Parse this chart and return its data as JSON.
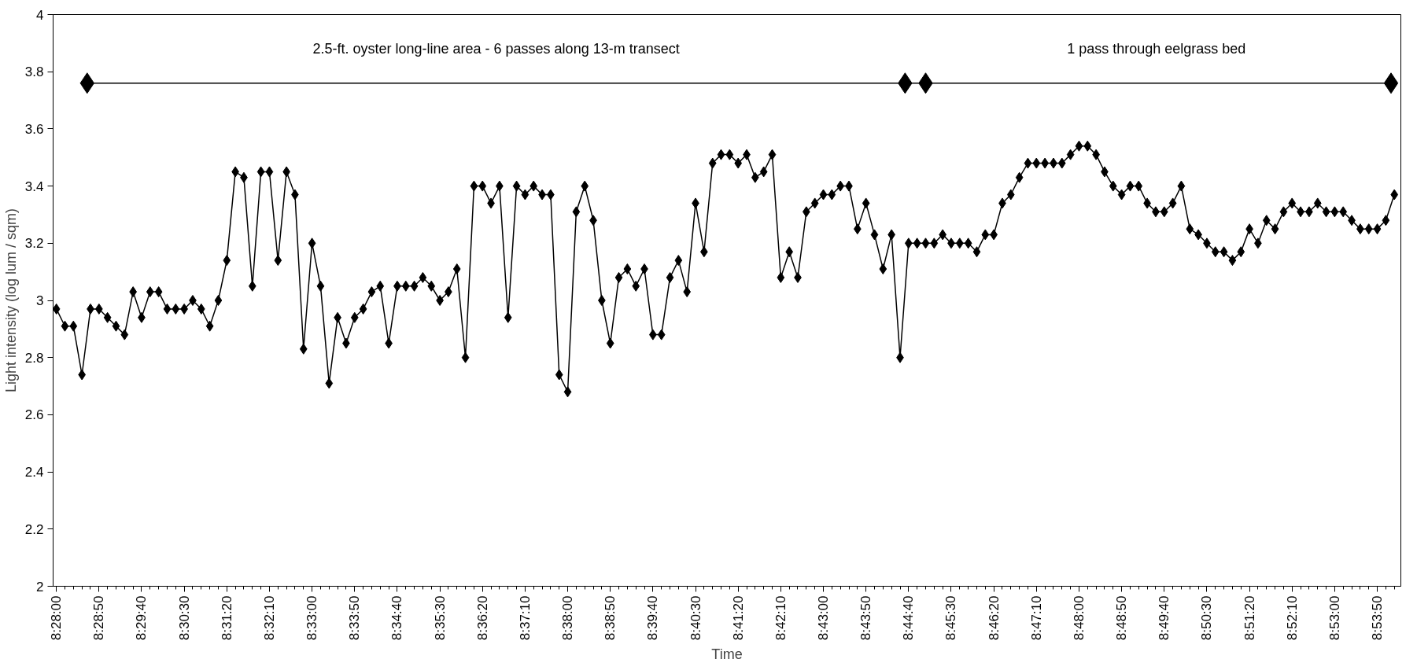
{
  "chart_data": {
    "type": "line",
    "xlabel": "Time",
    "ylabel": "Light intensity (log lum / sqm)",
    "xlim": [
      8.4656,
      8.9049
    ],
    "ylim": [
      2,
      4
    ],
    "yticks": [
      2,
      2.2,
      2.4,
      2.6,
      2.8,
      3,
      3.2,
      3.4,
      3.6,
      3.8,
      4
    ],
    "xticks": [
      {
        "value": 8.46667,
        "label": "8:28:00"
      },
      {
        "value": 8.48056,
        "label": "8:28:50"
      },
      {
        "value": 8.49444,
        "label": "8:29:40"
      },
      {
        "value": 8.50833,
        "label": "8:30:30"
      },
      {
        "value": 8.52222,
        "label": "8:31:20"
      },
      {
        "value": 8.53611,
        "label": "8:32:10"
      },
      {
        "value": 8.55,
        "label": "8:33:00"
      },
      {
        "value": 8.56389,
        "label": "8:33:50"
      },
      {
        "value": 8.57778,
        "label": "8:34:40"
      },
      {
        "value": 8.59167,
        "label": "8:35:30"
      },
      {
        "value": 8.60556,
        "label": "8:36:20"
      },
      {
        "value": 8.61944,
        "label": "8:37:10"
      },
      {
        "value": 8.63333,
        "label": "8:38:00"
      },
      {
        "value": 8.64722,
        "label": "8:38:50"
      },
      {
        "value": 8.66111,
        "label": "8:39:40"
      },
      {
        "value": 8.675,
        "label": "8:40:30"
      },
      {
        "value": 8.68889,
        "label": "8:41:20"
      },
      {
        "value": 8.70278,
        "label": "8:42:10"
      },
      {
        "value": 8.71667,
        "label": "8:43:00"
      },
      {
        "value": 8.73056,
        "label": "8:43:50"
      },
      {
        "value": 8.74444,
        "label": "8:44:40"
      },
      {
        "value": 8.75833,
        "label": "8:45:30"
      },
      {
        "value": 8.77222,
        "label": "8:46:20"
      },
      {
        "value": 8.78611,
        "label": "8:47:10"
      },
      {
        "value": 8.8,
        "label": "8:48:00"
      },
      {
        "value": 8.81389,
        "label": "8:48:50"
      },
      {
        "value": 8.82778,
        "label": "8:49:40"
      },
      {
        "value": 8.84167,
        "label": "8:50:30"
      },
      {
        "value": 8.85556,
        "label": "8:51:20"
      },
      {
        "value": 8.86944,
        "label": "8:52:10"
      },
      {
        "value": 8.88333,
        "label": "8:53:00"
      },
      {
        "value": 8.89722,
        "label": "8:53:50"
      }
    ],
    "grid": false,
    "line_style": "solid",
    "annotations": [
      "2.5-ft. oyster long-line area - 6 passes along 13-m transect",
      "1  pass through eelgrass bed"
    ],
    "series": [
      {
        "color": "#000000",
        "marker": "diamond",
        "x": [
          8.46667,
          8.46944,
          8.47222,
          8.475,
          8.47778,
          8.48056,
          8.48333,
          8.48611,
          8.48889,
          8.49167,
          8.49444,
          8.49722,
          8.5,
          8.50278,
          8.50556,
          8.50833,
          8.51111,
          8.51389,
          8.51667,
          8.51944,
          8.52222,
          8.525,
          8.52778,
          8.53056,
          8.53333,
          8.53611,
          8.53889,
          8.54167,
          8.54444,
          8.54722,
          8.55,
          8.55278,
          8.55556,
          8.55833,
          8.56111,
          8.56389,
          8.56667,
          8.56944,
          8.57222,
          8.575,
          8.57778,
          8.58056,
          8.58333,
          8.58611,
          8.58889,
          8.59167,
          8.59444,
          8.59722,
          8.6,
          8.60278,
          8.60556,
          8.60833,
          8.61111,
          8.61389,
          8.61667,
          8.61944,
          8.62222,
          8.625,
          8.62778,
          8.63056,
          8.63333,
          8.63611,
          8.63889,
          8.64167,
          8.64444,
          8.64722,
          8.65,
          8.65278,
          8.65556,
          8.65833,
          8.66111,
          8.66389,
          8.66667,
          8.66944,
          8.67222,
          8.675,
          8.67778,
          8.68056,
          8.68333,
          8.68611,
          8.68889,
          8.69167,
          8.69444,
          8.69722,
          8.7,
          8.70278,
          8.70556,
          8.70833,
          8.71111,
          8.71389,
          8.71667,
          8.71944,
          8.72222,
          8.725,
          8.72778,
          8.73056,
          8.73333,
          8.73611,
          8.73889,
          8.74167,
          8.74444,
          8.74722,
          8.75,
          8.75278,
          8.75556,
          8.75833,
          8.76111,
          8.76389,
          8.76667,
          8.76944,
          8.77222,
          8.775,
          8.77778,
          8.78056,
          8.78333,
          8.78611,
          8.78889,
          8.79167,
          8.79444,
          8.79722,
          8.8,
          8.80278,
          8.80556,
          8.80833,
          8.81111,
          8.81389,
          8.81667,
          8.81944,
          8.82222,
          8.825,
          8.82778,
          8.83056,
          8.83333,
          8.83611,
          8.83889,
          8.84167,
          8.84444,
          8.84722,
          8.85,
          8.85278,
          8.85556,
          8.85833,
          8.86111,
          8.86389,
          8.86667,
          8.86944,
          8.87222,
          8.875,
          8.87778,
          8.88056,
          8.88333,
          8.88611,
          8.88889,
          8.89167,
          8.89444,
          8.89722,
          8.9,
          8.90278
        ],
        "values": [
          2.97,
          2.91,
          2.91,
          2.74,
          2.97,
          2.97,
          2.94,
          2.91,
          2.88,
          3.03,
          2.94,
          3.03,
          3.03,
          2.97,
          2.97,
          2.97,
          3.0,
          2.97,
          2.91,
          3.0,
          3.14,
          3.45,
          3.43,
          3.05,
          3.45,
          3.45,
          3.14,
          3.45,
          3.37,
          2.83,
          3.2,
          3.05,
          2.71,
          2.94,
          2.85,
          2.94,
          2.97,
          3.03,
          3.05,
          2.85,
          3.05,
          3.05,
          3.05,
          3.08,
          3.05,
          3.0,
          3.03,
          3.11,
          2.8,
          3.4,
          3.4,
          3.34,
          3.4,
          2.94,
          3.4,
          3.37,
          3.4,
          3.37,
          3.37,
          2.74,
          2.68,
          3.31,
          3.4,
          3.28,
          3.0,
          2.85,
          3.08,
          3.11,
          3.05,
          3.11,
          2.88,
          2.88,
          3.08,
          3.14,
          3.03,
          3.34,
          3.17,
          3.48,
          3.51,
          3.51,
          3.48,
          3.51,
          3.43,
          3.45,
          3.51,
          3.08,
          3.17,
          3.08,
          3.31,
          3.34,
          3.37,
          3.37,
          3.4,
          3.4,
          3.25,
          3.34,
          3.23,
          3.11,
          3.23,
          2.8,
          3.2,
          3.2,
          3.2,
          3.2,
          3.23,
          3.2,
          3.2,
          3.2,
          3.17,
          3.23,
          3.23,
          3.34,
          3.37,
          3.43,
          3.48,
          3.48,
          3.48,
          3.48,
          3.48,
          3.51,
          3.54,
          3.54,
          3.51,
          3.45,
          3.4,
          3.37,
          3.4,
          3.4,
          3.34,
          3.31,
          3.31,
          3.34,
          3.4,
          3.25,
          3.23,
          3.2,
          3.17,
          3.17,
          3.14,
          3.17,
          3.25,
          3.2,
          3.28,
          3.25,
          3.31,
          3.34,
          3.31,
          3.31,
          3.34,
          3.31,
          3.31,
          3.31,
          3.28,
          3.25,
          3.25,
          3.25,
          3.28,
          3.37
        ]
      },
      {
        "color": "#000000",
        "marker": "diamond",
        "x": [
          8.4767,
          8.7433,
          8.75,
          8.9017
        ],
        "values": [
          3.76,
          3.76,
          3.76,
          3.76
        ]
      }
    ]
  }
}
